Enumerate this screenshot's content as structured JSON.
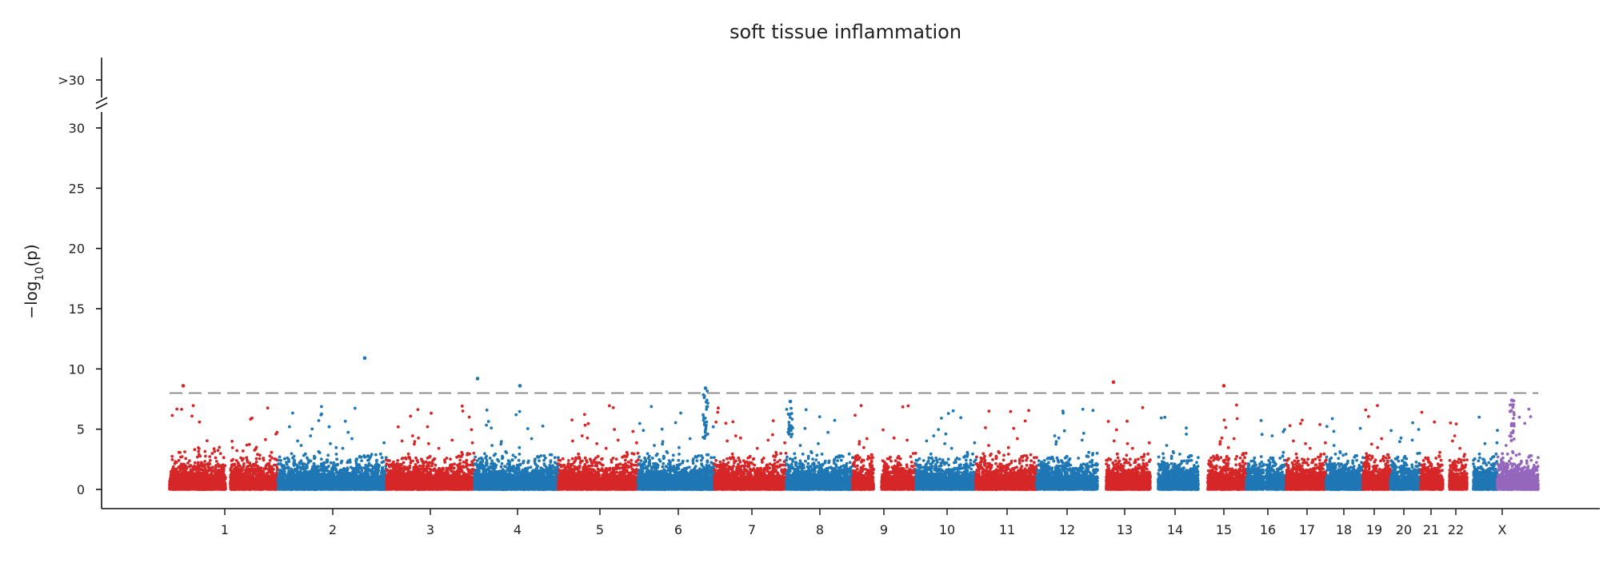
{
  "chart_data": {
    "type": "scatter",
    "subtype": "manhattan",
    "title": "soft tissue inflammation",
    "ylabel": "−log10(p)",
    "ylabel_parts": {
      "prefix": "−log",
      "subscript": "10",
      "suffix": "(p)"
    },
    "xlabel": "",
    "ylim": [
      0,
      31.5
    ],
    "yticks": [
      0,
      5,
      10,
      15,
      20,
      25,
      30
    ],
    "ytick_labels": [
      "0",
      "5",
      "10",
      "15",
      "20",
      "25",
      "30"
    ],
    "y_break_label": ">30",
    "significance_threshold": 8.0,
    "grid": false,
    "legend": "none",
    "colors": {
      "red": "#d62728",
      "blue": "#1f77b4",
      "purple": "#9467bd",
      "threshold": "#808080"
    },
    "chromosomes": [
      {
        "name": "1",
        "color": "red"
      },
      {
        "name": "2",
        "color": "blue"
      },
      {
        "name": "3",
        "color": "red"
      },
      {
        "name": "4",
        "color": "blue"
      },
      {
        "name": "5",
        "color": "red"
      },
      {
        "name": "6",
        "color": "blue"
      },
      {
        "name": "7",
        "color": "red"
      },
      {
        "name": "8",
        "color": "blue"
      },
      {
        "name": "9",
        "color": "red"
      },
      {
        "name": "10",
        "color": "blue"
      },
      {
        "name": "11",
        "color": "red"
      },
      {
        "name": "12",
        "color": "blue"
      },
      {
        "name": "13",
        "color": "red"
      },
      {
        "name": "14",
        "color": "blue"
      },
      {
        "name": "15",
        "color": "red"
      },
      {
        "name": "16",
        "color": "blue"
      },
      {
        "name": "17",
        "color": "red"
      },
      {
        "name": "18",
        "color": "blue"
      },
      {
        "name": "19",
        "color": "red"
      },
      {
        "name": "20",
        "color": "blue"
      },
      {
        "name": "21",
        "color": "red"
      },
      {
        "name": "22",
        "color": "blue"
      },
      {
        "name": "X",
        "color": "purple"
      }
    ],
    "notable_points": [
      {
        "chromosome": "1",
        "y": 8.6
      },
      {
        "chromosome": "2",
        "y": 10.9
      },
      {
        "chromosome": "4",
        "y": 9.2
      },
      {
        "chromosome": "4",
        "y": 8.6
      },
      {
        "chromosome": "6",
        "y": 8.4
      },
      {
        "chromosome": "8",
        "y": 7.3
      },
      {
        "chromosome": "13",
        "y": 8.9
      },
      {
        "chromosome": "15",
        "y": 8.6
      },
      {
        "chromosome": "X",
        "y": 7.4
      }
    ]
  }
}
